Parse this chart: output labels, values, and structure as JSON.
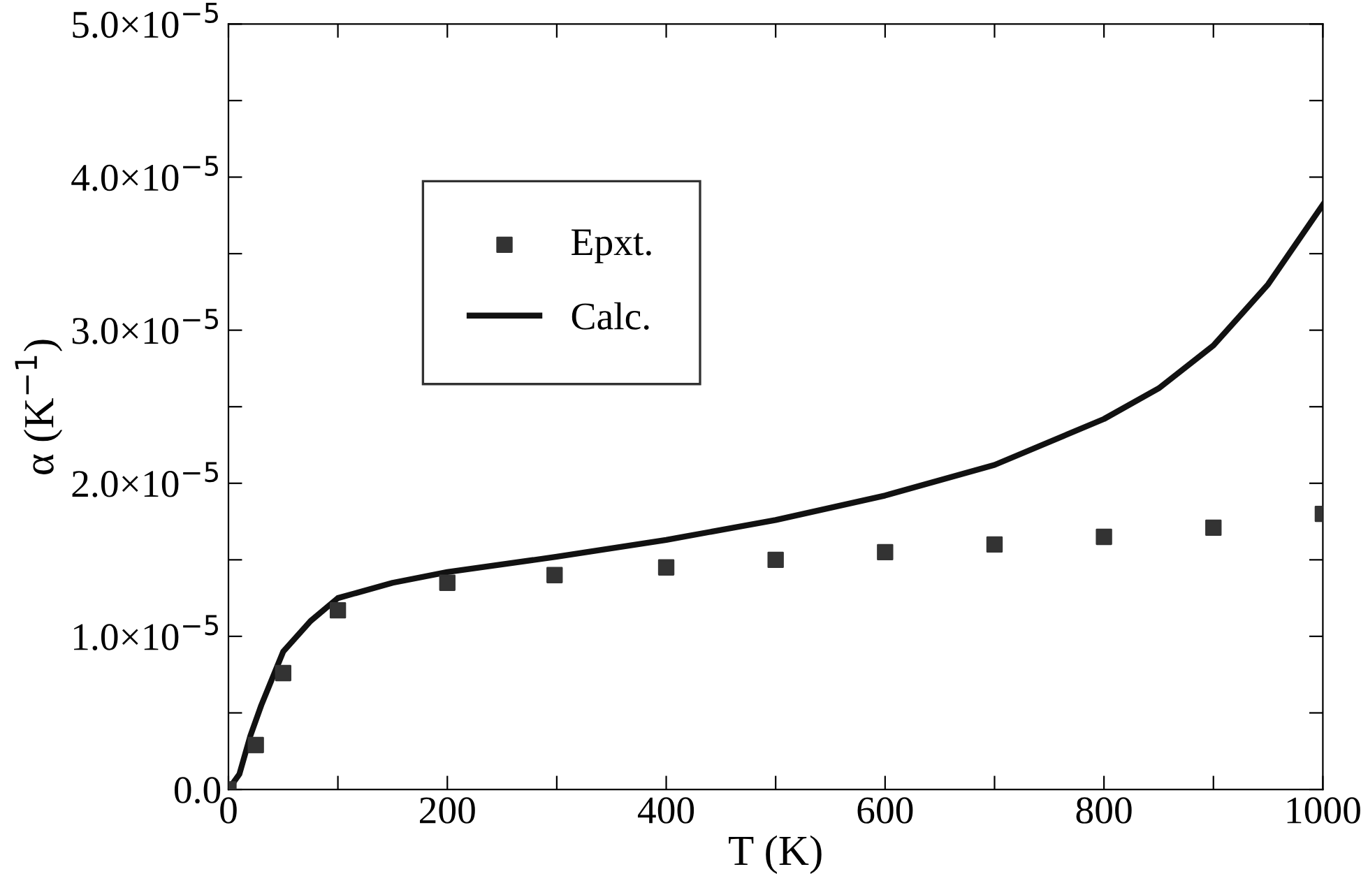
{
  "chart_data": {
    "type": "line",
    "xlabel": "T (K)",
    "ylabel": "α (K$^{−1}$)",
    "xlim": [
      0,
      1000
    ],
    "ylim": [
      0,
      5e-05
    ],
    "xticks": [
      0,
      {
        "value": 100,
        "label": null
      },
      200,
      {
        "value": 300,
        "label": null
      },
      400,
      {
        "value": 500,
        "label": null
      },
      600,
      {
        "value": 700,
        "label": null
      },
      800,
      {
        "value": 900,
        "label": null
      },
      1000
    ],
    "yticks": [
      {
        "value": 0,
        "label": "0.0"
      },
      {
        "value": 5e-06,
        "label": null
      },
      {
        "value": 1e-05,
        "label": "1.0×10$^{−5}$"
      },
      {
        "value": 1.5e-05,
        "label": null
      },
      {
        "value": 2e-05,
        "label": "2.0×10$^{−5}$"
      },
      {
        "value": 2.5e-05,
        "label": null
      },
      {
        "value": 3e-05,
        "label": "3.0×10$^{−5}$"
      },
      {
        "value": 3.5e-05,
        "label": null
      },
      {
        "value": 4e-05,
        "label": "4.0×10$^{−5}$"
      },
      {
        "value": 4.5e-05,
        "label": null
      },
      {
        "value": 5e-05,
        "label": "5.0×10$^{−5}$"
      }
    ],
    "grid": false,
    "legend": "top left",
    "series": [
      {
        "name": "Epxt.",
        "type": "scatter",
        "marker": "square",
        "color": "#333333",
        "x": [
          0,
          25,
          50,
          100,
          200,
          298,
          400,
          500,
          600,
          700,
          800,
          900,
          1000
        ],
        "values": [
          0,
          2.9e-06,
          7.6e-06,
          1.17e-05,
          1.35e-05,
          1.4e-05,
          1.45e-05,
          1.5e-05,
          1.55e-05,
          1.6e-05,
          1.65e-05,
          1.71e-05,
          1.8e-05
        ]
      },
      {
        "name": "Calc.",
        "line_style": "solid",
        "color": "#111111",
        "x": [
          0,
          10,
          20,
          30,
          50,
          75,
          100,
          150,
          200,
          300,
          400,
          500,
          600,
          700,
          800,
          850,
          900,
          950,
          1000
        ],
        "values": [
          0,
          1e-06,
          3.5e-06,
          5.5e-06,
          9e-06,
          1.1e-05,
          1.25e-05,
          1.35e-05,
          1.42e-05,
          1.52e-05,
          1.63e-05,
          1.76e-05,
          1.92e-05,
          2.12e-05,
          2.42e-05,
          2.62e-05,
          2.9e-05,
          3.3e-05,
          3.82e-05
        ]
      }
    ]
  }
}
